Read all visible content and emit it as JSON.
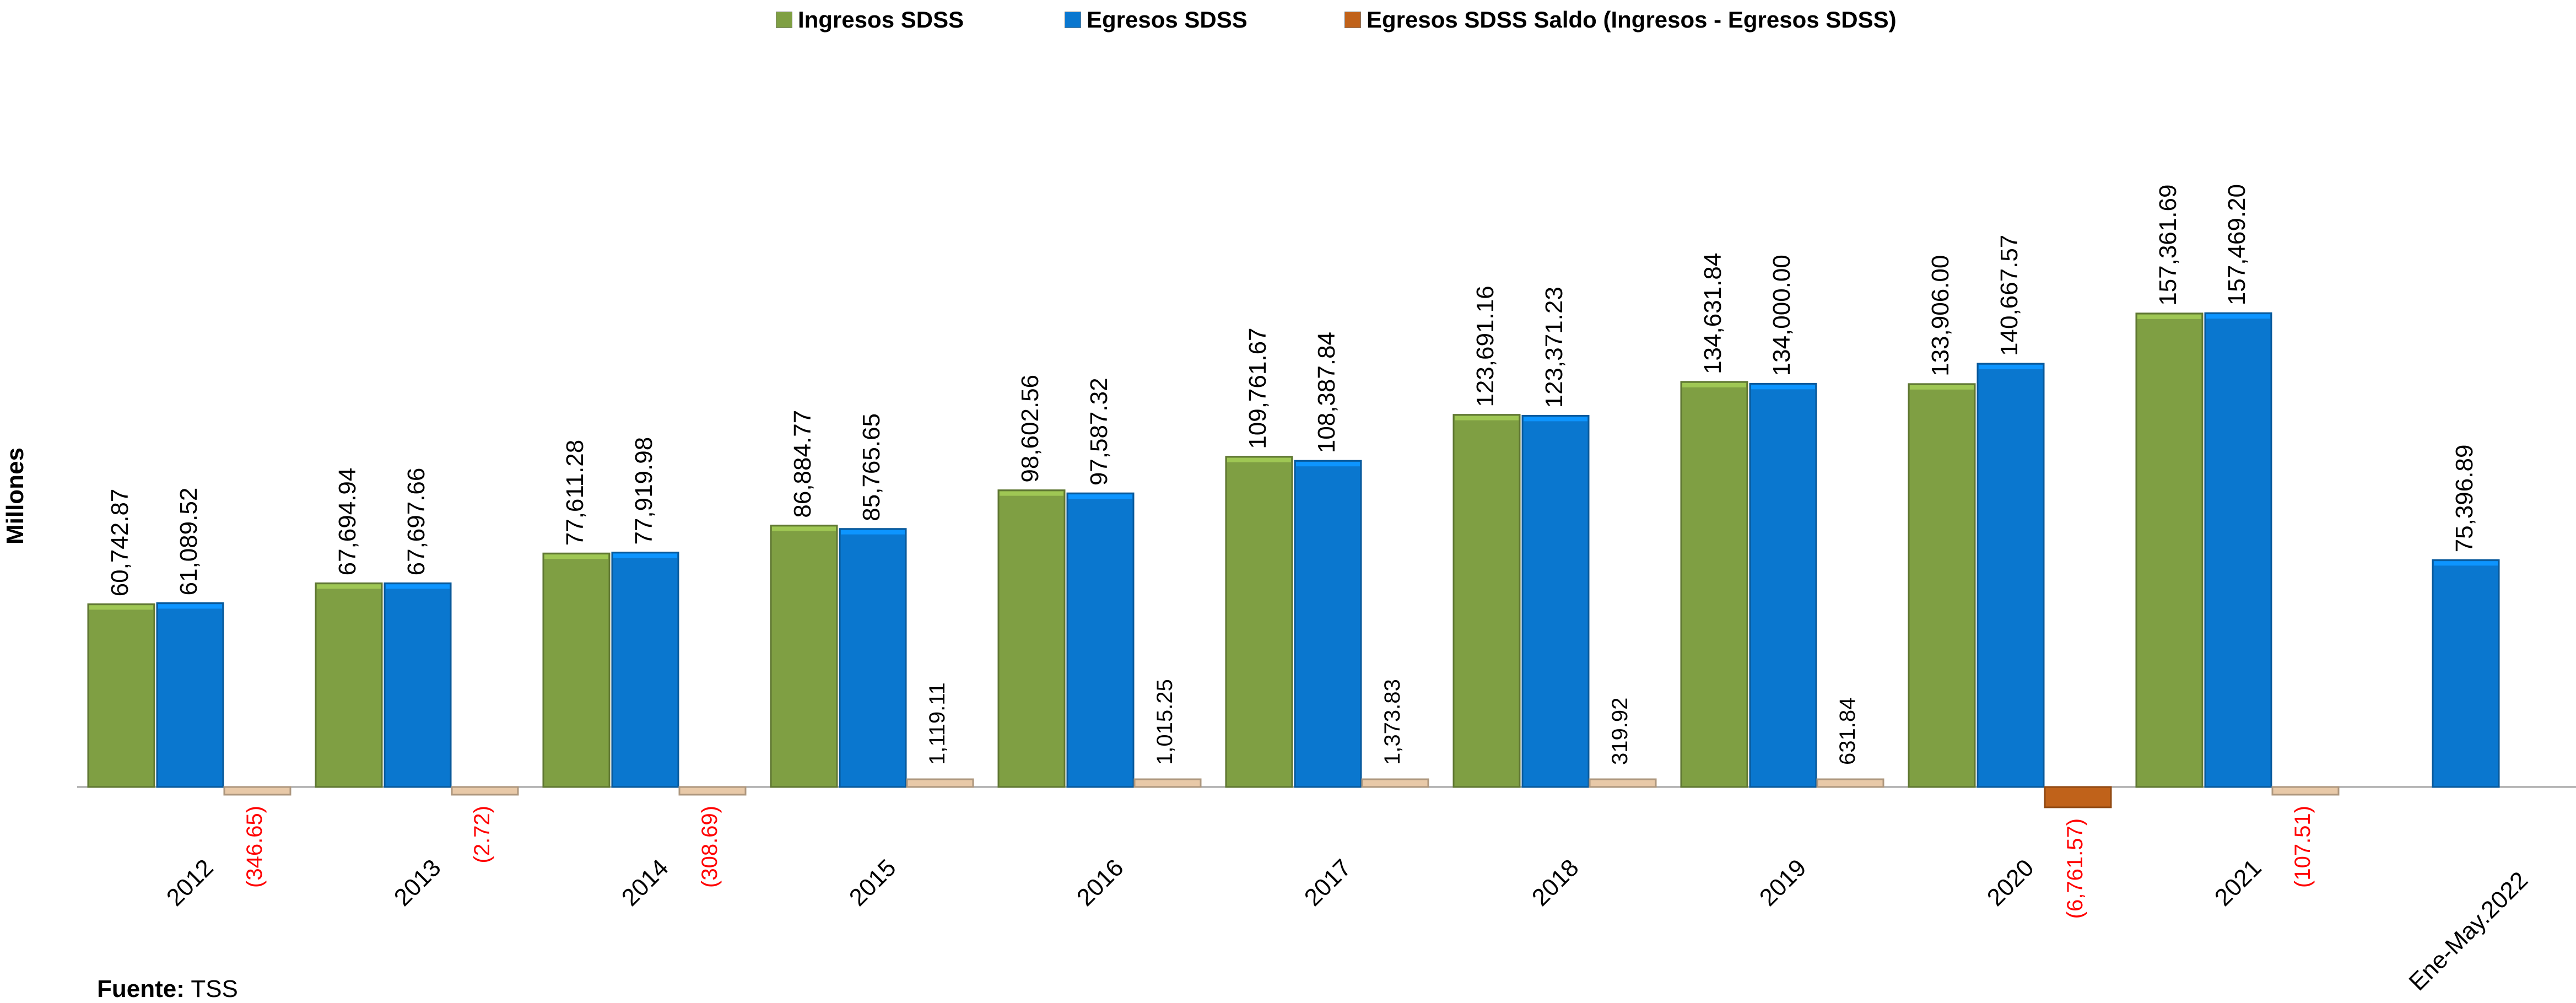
{
  "chart_data": {
    "type": "bar",
    "ylabel": "Millones",
    "categories": [
      "2012",
      "2013",
      "2014",
      "2015",
      "2016",
      "2017",
      "2018",
      "2019",
      "2020",
      "2021",
      "Ene-May.2022"
    ],
    "series": [
      {
        "name": "Ingresos SDSS",
        "color": "#7F9F43",
        "values": [
          60742.87,
          67694.94,
          77611.28,
          86884.77,
          98602.56,
          109761.67,
          123691.16,
          134631.84,
          133906.0,
          157361.69,
          null
        ],
        "labels": [
          "60,742.87",
          "67,694.94",
          "77,611.28",
          "86,884.77",
          "98,602.56",
          "109,761.67",
          "123,691.16",
          "134,631.84",
          "133,906.00",
          "157,361.69",
          ""
        ]
      },
      {
        "name": "Egresos SDSS",
        "color": "#0A77CF",
        "values": [
          61089.52,
          67697.66,
          77919.98,
          85765.65,
          97587.32,
          108387.84,
          123371.23,
          134000.0,
          140667.57,
          157469.2,
          75396.89
        ],
        "labels": [
          "61,089.52",
          "67,697.66",
          "77,919.98",
          "85,765.65",
          "97,587.32",
          "108,387.84",
          "123,371.23",
          "134,000.00",
          "140,667.57",
          "157,469.20",
          "75,396.89"
        ]
      },
      {
        "name": "Egresos SDSS Saldo  (Ingresos - Egresos SDSS)",
        "color": "#C0621A",
        "values": [
          -346.65,
          -2.72,
          -308.69,
          1119.11,
          1015.25,
          1373.83,
          319.92,
          631.84,
          -6761.57,
          -107.51,
          null
        ],
        "labels": [
          "(346.65)",
          "(2.72)",
          "(308.69)",
          "1,119.11",
          "1,015.25",
          "1,373.83",
          "319.92",
          "631.84",
          "(6,761.57)",
          "(107.51)",
          ""
        ]
      }
    ],
    "negative_label_color": "#FF0000",
    "grid": false,
    "legend_position": "top"
  },
  "source": {
    "label": "Fuente:",
    "value": "TSS"
  }
}
